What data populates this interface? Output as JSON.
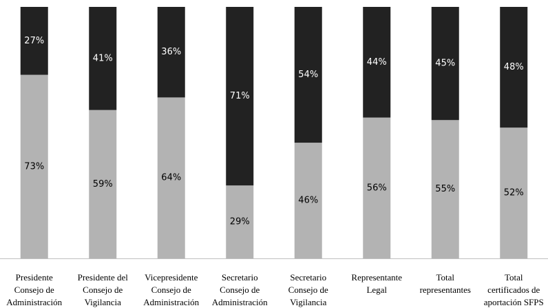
{
  "chart_data": {
    "type": "bar",
    "stacked": true,
    "percent_stacked": true,
    "categories": [
      [
        "Presidente",
        "Consejo de",
        "Administración"
      ],
      [
        "Presidente del",
        "Consejo de",
        "Vigilancia"
      ],
      [
        "Vicepresidente",
        "Consejo de",
        "Administración"
      ],
      [
        "Secretario",
        "Consejo de",
        "Administración"
      ],
      [
        "Secretario",
        "Consejo de",
        "Vigilancia"
      ],
      [
        "Representante",
        "Legal"
      ],
      [
        "Total",
        "representantes"
      ],
      [
        "Total",
        "certificados de",
        "aportación SFPS"
      ]
    ],
    "series": [
      {
        "color": "#b3b3b3",
        "label_color": "#000000",
        "values": [
          73,
          59,
          64,
          29,
          46,
          56,
          55,
          52
        ],
        "labels": [
          "73%",
          "59%",
          "64%",
          "29%",
          "46%",
          "56%",
          "55%",
          "52%"
        ]
      },
      {
        "color": "#222222",
        "label_color": "#ffffff",
        "values": [
          27,
          41,
          36,
          71,
          54,
          44,
          45,
          48
        ],
        "labels": [
          "27%",
          "41%",
          "36%",
          "71%",
          "54%",
          "44%",
          "45%",
          "48%"
        ]
      }
    ],
    "ylim": [
      0,
      100
    ],
    "grid": false,
    "legend": "none"
  }
}
